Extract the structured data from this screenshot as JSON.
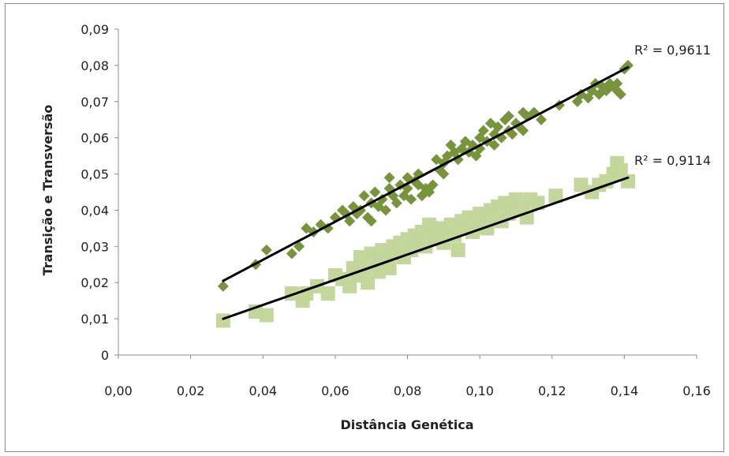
{
  "chart_data": {
    "type": "scatter",
    "xlabel": "Distância Genética",
    "ylabel": "Transição e Transversão",
    "xlim": [
      0,
      0.16
    ],
    "ylim": [
      0,
      0.09
    ],
    "xticks": [
      "0,00",
      "0,02",
      "0,04",
      "0,06",
      "0,08",
      "0,10",
      "0,12",
      "0,14",
      "0,16"
    ],
    "yticks": [
      "0",
      "0,01",
      "0,02",
      "0,03",
      "0,04",
      "0,05",
      "0,06",
      "0,07",
      "0,08",
      "0,09"
    ],
    "grid": false,
    "legend": "none",
    "series": [
      {
        "marker": "diamond",
        "color": "#77933c",
        "trendline": {
          "x": [
            0.029,
            0.141
          ],
          "y": [
            0.0205,
            0.0795
          ],
          "r2_label": "R² = 0,9611"
        },
        "points": [
          [
            0.029,
            0.019
          ],
          [
            0.038,
            0.025
          ],
          [
            0.041,
            0.029
          ],
          [
            0.048,
            0.028
          ],
          [
            0.05,
            0.03
          ],
          [
            0.052,
            0.035
          ],
          [
            0.054,
            0.034
          ],
          [
            0.056,
            0.036
          ],
          [
            0.058,
            0.035
          ],
          [
            0.06,
            0.038
          ],
          [
            0.062,
            0.04
          ],
          [
            0.063,
            0.039
          ],
          [
            0.064,
            0.037
          ],
          [
            0.065,
            0.041
          ],
          [
            0.066,
            0.039
          ],
          [
            0.067,
            0.04
          ],
          [
            0.068,
            0.044
          ],
          [
            0.069,
            0.038
          ],
          [
            0.07,
            0.042
          ],
          [
            0.07,
            0.037
          ],
          [
            0.071,
            0.045
          ],
          [
            0.072,
            0.041
          ],
          [
            0.073,
            0.043
          ],
          [
            0.074,
            0.04
          ],
          [
            0.075,
            0.046
          ],
          [
            0.075,
            0.049
          ],
          [
            0.076,
            0.044
          ],
          [
            0.077,
            0.042
          ],
          [
            0.078,
            0.047
          ],
          [
            0.079,
            0.044
          ],
          [
            0.08,
            0.046
          ],
          [
            0.08,
            0.049
          ],
          [
            0.081,
            0.043
          ],
          [
            0.082,
            0.048
          ],
          [
            0.083,
            0.047
          ],
          [
            0.083,
            0.05
          ],
          [
            0.084,
            0.044
          ],
          [
            0.085,
            0.046
          ],
          [
            0.086,
            0.045
          ],
          [
            0.087,
            0.047
          ],
          [
            0.088,
            0.054
          ],
          [
            0.089,
            0.051
          ],
          [
            0.09,
            0.053
          ],
          [
            0.09,
            0.05
          ],
          [
            0.091,
            0.055
          ],
          [
            0.092,
            0.058
          ],
          [
            0.093,
            0.056
          ],
          [
            0.094,
            0.054
          ],
          [
            0.095,
            0.057
          ],
          [
            0.096,
            0.059
          ],
          [
            0.097,
            0.056
          ],
          [
            0.098,
            0.058
          ],
          [
            0.099,
            0.055
          ],
          [
            0.1,
            0.06
          ],
          [
            0.1,
            0.057
          ],
          [
            0.101,
            0.062
          ],
          [
            0.102,
            0.059
          ],
          [
            0.103,
            0.064
          ],
          [
            0.104,
            0.061
          ],
          [
            0.104,
            0.058
          ],
          [
            0.105,
            0.063
          ],
          [
            0.106,
            0.06
          ],
          [
            0.107,
            0.065
          ],
          [
            0.108,
            0.062
          ],
          [
            0.108,
            0.066
          ],
          [
            0.109,
            0.061
          ],
          [
            0.11,
            0.064
          ],
          [
            0.111,
            0.063
          ],
          [
            0.112,
            0.067
          ],
          [
            0.112,
            0.062
          ],
          [
            0.113,
            0.066
          ],
          [
            0.115,
            0.067
          ],
          [
            0.117,
            0.065
          ],
          [
            0.122,
            0.069
          ],
          [
            0.127,
            0.07
          ],
          [
            0.128,
            0.072
          ],
          [
            0.13,
            0.071
          ],
          [
            0.131,
            0.073
          ],
          [
            0.132,
            0.075
          ],
          [
            0.133,
            0.072
          ],
          [
            0.134,
            0.074
          ],
          [
            0.135,
            0.073
          ],
          [
            0.136,
            0.075
          ],
          [
            0.137,
            0.074
          ],
          [
            0.138,
            0.073
          ],
          [
            0.138,
            0.075
          ],
          [
            0.139,
            0.072
          ],
          [
            0.14,
            0.079
          ],
          [
            0.141,
            0.08
          ]
        ]
      },
      {
        "marker": "square",
        "color": "#c3d69b",
        "trendline": {
          "x": [
            0.029,
            0.141
          ],
          "y": [
            0.01,
            0.049
          ],
          "r2_label": "R² = 0,9114"
        },
        "points": [
          [
            0.029,
            0.0095
          ],
          [
            0.038,
            0.012
          ],
          [
            0.041,
            0.011
          ],
          [
            0.048,
            0.017
          ],
          [
            0.051,
            0.015
          ],
          [
            0.052,
            0.017
          ],
          [
            0.055,
            0.019
          ],
          [
            0.058,
            0.017
          ],
          [
            0.06,
            0.022
          ],
          [
            0.062,
            0.021
          ],
          [
            0.064,
            0.019
          ],
          [
            0.065,
            0.024
          ],
          [
            0.066,
            0.022
          ],
          [
            0.067,
            0.027
          ],
          [
            0.068,
            0.024
          ],
          [
            0.069,
            0.02
          ],
          [
            0.07,
            0.028
          ],
          [
            0.071,
            0.025
          ],
          [
            0.072,
            0.023
          ],
          [
            0.073,
            0.029
          ],
          [
            0.074,
            0.026
          ],
          [
            0.075,
            0.024
          ],
          [
            0.076,
            0.03
          ],
          [
            0.077,
            0.028
          ],
          [
            0.078,
            0.031
          ],
          [
            0.079,
            0.027
          ],
          [
            0.08,
            0.032
          ],
          [
            0.081,
            0.029
          ],
          [
            0.082,
            0.033
          ],
          [
            0.083,
            0.031
          ],
          [
            0.084,
            0.034
          ],
          [
            0.085,
            0.03
          ],
          [
            0.086,
            0.036
          ],
          [
            0.087,
            0.033
          ],
          [
            0.088,
            0.032
          ],
          [
            0.089,
            0.035
          ],
          [
            0.09,
            0.031
          ],
          [
            0.091,
            0.034
          ],
          [
            0.092,
            0.036
          ],
          [
            0.093,
            0.033
          ],
          [
            0.094,
            0.029
          ],
          [
            0.095,
            0.037
          ],
          [
            0.096,
            0.035
          ],
          [
            0.097,
            0.038
          ],
          [
            0.098,
            0.034
          ],
          [
            0.099,
            0.036
          ],
          [
            0.1,
            0.039
          ],
          [
            0.101,
            0.037
          ],
          [
            0.102,
            0.035
          ],
          [
            0.103,
            0.04
          ],
          [
            0.104,
            0.038
          ],
          [
            0.105,
            0.041
          ],
          [
            0.106,
            0.037
          ],
          [
            0.107,
            0.042
          ],
          [
            0.108,
            0.039
          ],
          [
            0.109,
            0.041
          ],
          [
            0.11,
            0.043
          ],
          [
            0.111,
            0.04
          ],
          [
            0.112,
            0.042
          ],
          [
            0.113,
            0.038
          ],
          [
            0.114,
            0.043
          ],
          [
            0.116,
            0.042
          ],
          [
            0.121,
            0.044
          ],
          [
            0.128,
            0.047
          ],
          [
            0.131,
            0.045
          ],
          [
            0.133,
            0.047
          ],
          [
            0.135,
            0.048
          ],
          [
            0.137,
            0.05
          ],
          [
            0.138,
            0.053
          ],
          [
            0.139,
            0.051
          ],
          [
            0.141,
            0.048
          ]
        ]
      }
    ]
  }
}
